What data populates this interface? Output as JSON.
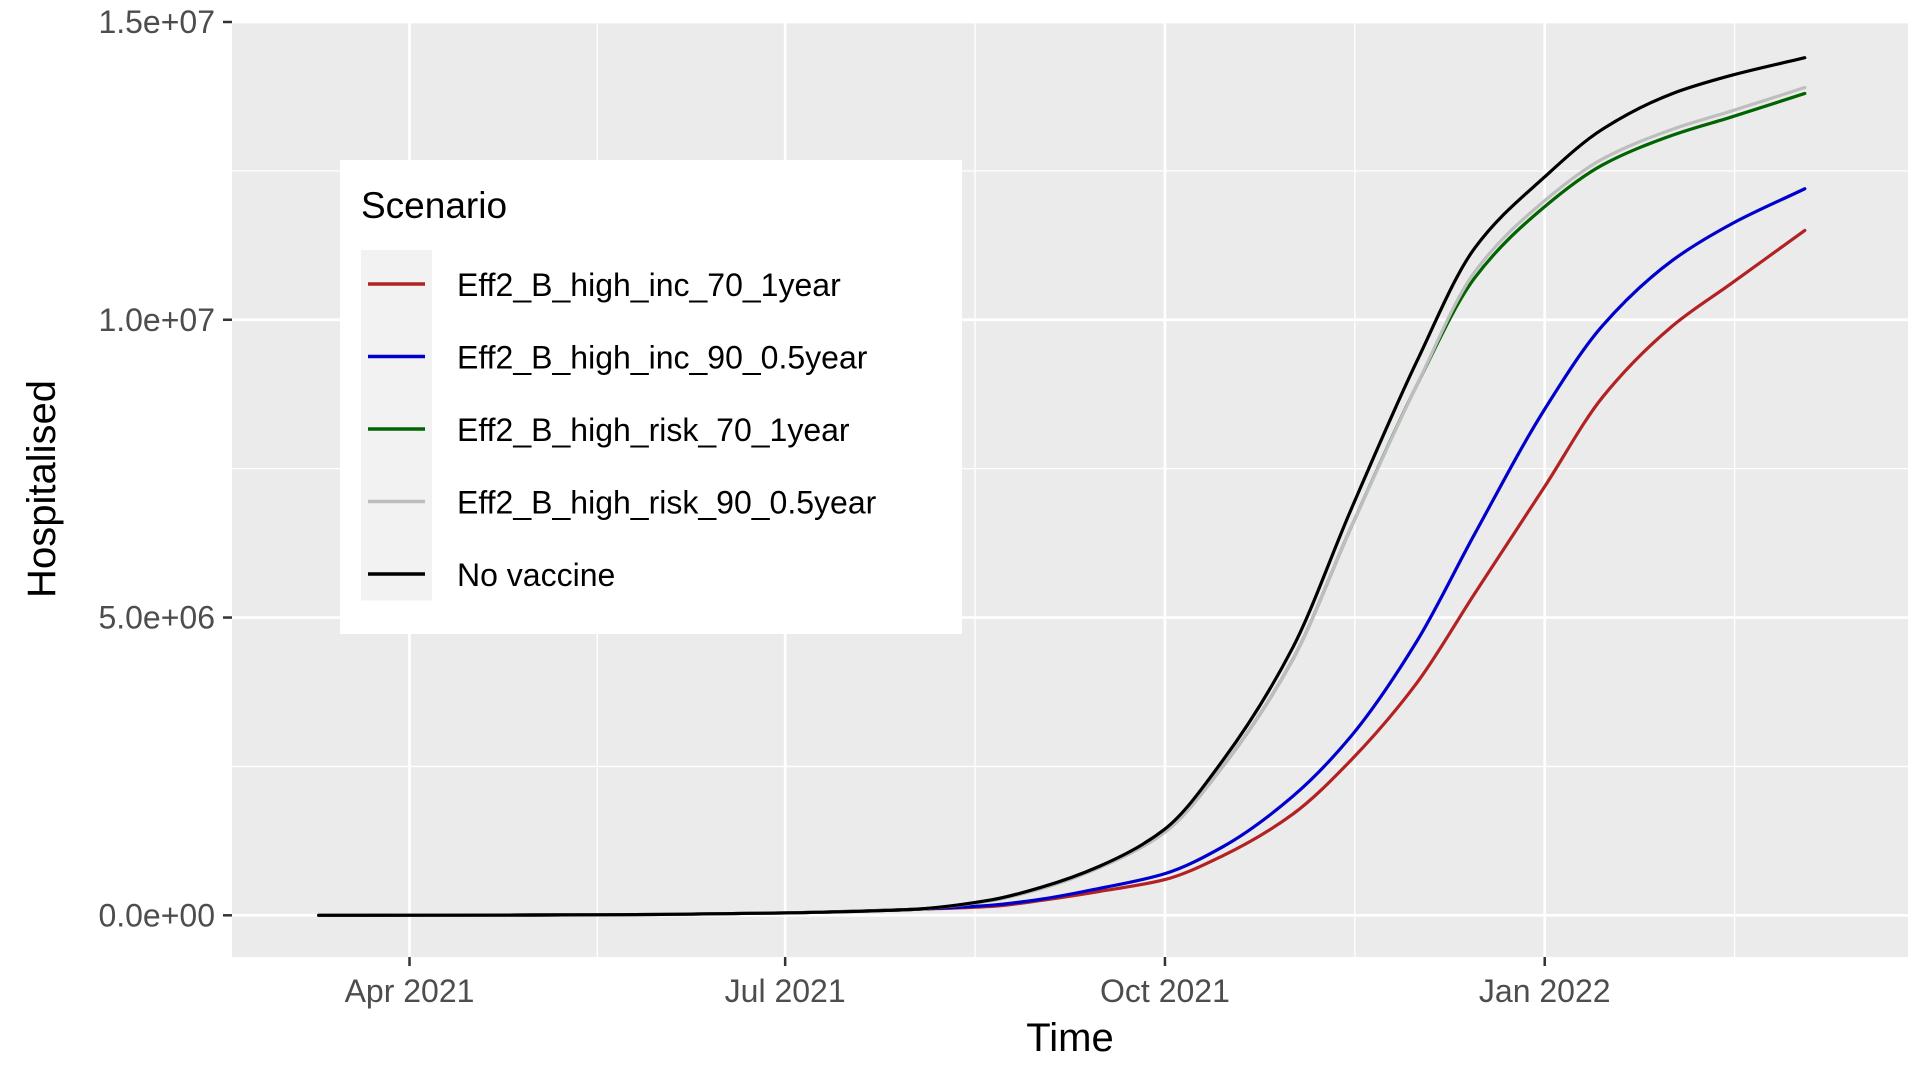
{
  "chart_data": {
    "type": "line",
    "title": "",
    "xlabel": "Time",
    "ylabel": "Hospitalised",
    "x_tick_labels": [
      {
        "date": "2021-04-01",
        "label": "Apr 2021"
      },
      {
        "date": "2021-07-01",
        "label": "Jul 2021"
      },
      {
        "date": "2021-10-01",
        "label": "Oct 2021"
      },
      {
        "date": "2022-01-01",
        "label": "Jan 2022"
      }
    ],
    "y_tick_labels": [
      {
        "value": 0,
        "label": "0.0e+00"
      },
      {
        "value": 5000000,
        "label": "5.0e+06"
      },
      {
        "value": 10000000,
        "label": "1.0e+07"
      },
      {
        "value": 15000000,
        "label": "1.5e+07"
      }
    ],
    "xlim": [
      "2021-02-17",
      "2022-03-30"
    ],
    "ylim": [
      -700000,
      15000000
    ],
    "grid": true,
    "legend": {
      "title": "Scenario",
      "position": "top-left"
    },
    "x": [
      "2021-03-10",
      "2021-05-01",
      "2021-06-01",
      "2021-07-01",
      "2021-08-01",
      "2021-08-20",
      "2021-09-01",
      "2021-09-15",
      "2021-10-01",
      "2021-10-15",
      "2021-11-01",
      "2021-11-15",
      "2021-12-01",
      "2021-12-15",
      "2022-01-01",
      "2022-01-15",
      "2022-02-01",
      "2022-02-15",
      "2022-03-05"
    ],
    "series": [
      {
        "name": "Eff2_B_high_inc_70_1year",
        "color": "#B22222",
        "values": [
          0,
          5000,
          15000,
          40000,
          100000,
          150000,
          250000,
          400000,
          600000,
          1000000,
          1700000,
          2600000,
          3900000,
          5400000,
          7200000,
          8700000,
          9900000,
          10600000,
          11500000
        ]
      },
      {
        "name": "Eff2_B_high_inc_90_0.5year",
        "color": "#0000CD",
        "values": [
          0,
          5000,
          15000,
          40000,
          100000,
          170000,
          270000,
          450000,
          700000,
          1150000,
          2000000,
          3000000,
          4600000,
          6400000,
          8500000,
          9900000,
          11000000,
          11600000,
          12200000
        ]
      },
      {
        "name": "Eff2_B_high_risk_70_1year",
        "color": "#006400",
        "values": [
          0,
          5000,
          15000,
          40000,
          100000,
          250000,
          450000,
          800000,
          1400000,
          2500000,
          4300000,
          6500000,
          8900000,
          10700000,
          11900000,
          12600000,
          13100000,
          13400000,
          13800000
        ]
      },
      {
        "name": "Eff2_B_high_risk_90_0.5year",
        "color": "#BEBEBE",
        "values": [
          0,
          5000,
          15000,
          40000,
          100000,
          250000,
          450000,
          800000,
          1400000,
          2500000,
          4300000,
          6500000,
          8900000,
          10800000,
          12000000,
          12700000,
          13200000,
          13500000,
          13900000
        ]
      },
      {
        "name": "No vaccine",
        "color": "#000000",
        "values": [
          0,
          5000,
          15000,
          40000,
          100000,
          260000,
          470000,
          820000,
          1450000,
          2600000,
          4500000,
          6800000,
          9300000,
          11200000,
          12400000,
          13200000,
          13800000,
          14100000,
          14400000
        ]
      }
    ]
  }
}
